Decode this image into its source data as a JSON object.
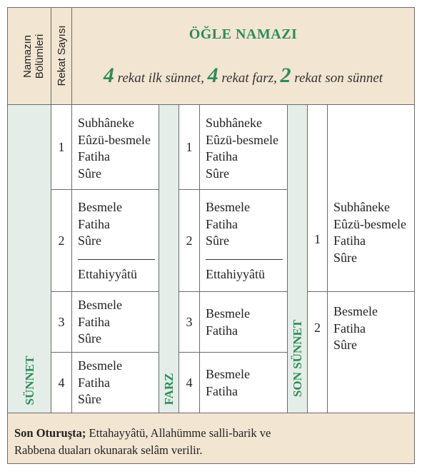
{
  "header": {
    "col1_label_line1": "Namazın",
    "col1_label_line2": "Bölümleri",
    "col2_label": "Rekat Sayısı",
    "title": "ÖĞLE NAMAZI",
    "subtitle": {
      "n1": "4",
      "t1": " rekat ilk sünnet, ",
      "n2": "4",
      "t2": " rekat farz, ",
      "n3": "2",
      "t3": " rekat son sünnet"
    }
  },
  "sections": {
    "sunnet_label": "SÜNNET",
    "farz_label": "FARZ",
    "son_sunnet_label": "SON SÜNNET"
  },
  "sunnet": {
    "r1": {
      "num": "1",
      "lines": [
        "Subhâneke",
        "Eûzü-besmele",
        "Fatiha",
        "Sûre"
      ]
    },
    "r2": {
      "num": "2",
      "lines": [
        "Besmele",
        "Fatiha",
        "Sûre"
      ],
      "after": "Ettahiyyâtü"
    },
    "r3": {
      "num": "3",
      "lines": [
        "Besmele",
        "Fatiha",
        "Sûre"
      ]
    },
    "r4": {
      "num": "4",
      "lines": [
        "Besmele",
        "Fatiha",
        "Sûre"
      ]
    }
  },
  "farz": {
    "r1": {
      "num": "1",
      "lines": [
        "Subhâneke",
        "Eûzü-besmele",
        "Fatiha",
        "Sûre"
      ]
    },
    "r2": {
      "num": "2",
      "lines": [
        "Besmele",
        "Fatiha",
        "Sûre"
      ],
      "after": "Ettahiyyâtü"
    },
    "r3": {
      "num": "3",
      "lines": [
        "Besmele",
        "Fatiha"
      ]
    },
    "r4": {
      "num": "4",
      "lines": [
        "Besmele",
        "Fatiha"
      ]
    }
  },
  "son_sunnet": {
    "r1": {
      "num": "1",
      "lines": [
        "Subhâneke",
        "Eûzü-besmele",
        "Fatiha",
        "Sûre"
      ]
    },
    "r2": {
      "num": "2",
      "lines": [
        "Besmele",
        "Fatiha",
        "Sûre"
      ]
    }
  },
  "footer": {
    "bold": "Son Oturuşta;",
    "text1": " Ettahayyâtü, Allahümme salli-barik ve",
    "text2": "Rabbena duaları okunarak selâm verilir."
  },
  "colors": {
    "beige": "#f2e5d2",
    "green_bg": "#e4ede8",
    "green_text": "#2e8b57"
  }
}
